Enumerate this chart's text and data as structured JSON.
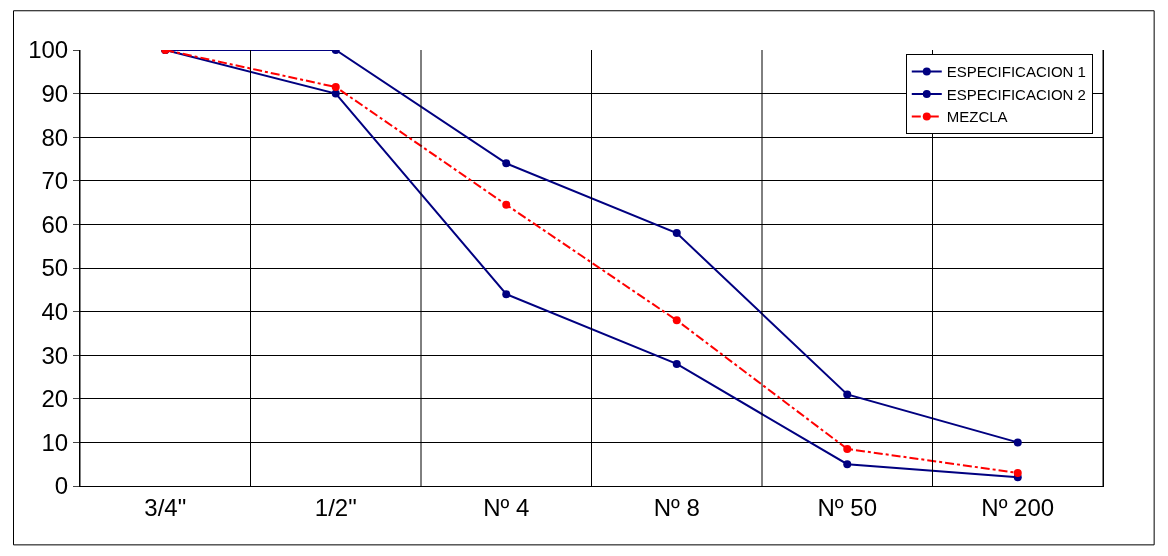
{
  "chart_data": {
    "type": "line",
    "categories": [
      "3/4\"",
      "1/2\"",
      "Nº 4",
      "Nº 8",
      "Nº 50",
      "Nº 200"
    ],
    "series": [
      {
        "name": "ESPECIFICACION 1",
        "color": "#000080",
        "values": [
          100,
          100,
          74,
          58,
          21,
          10
        ]
      },
      {
        "name": "ESPECIFICACION 2",
        "color": "#000080",
        "values": [
          100,
          90,
          44,
          28,
          5,
          2
        ]
      },
      {
        "name": "MEZCLA",
        "color": "#ff0000",
        "values": [
          100,
          91.5,
          64.5,
          38,
          8.5,
          3
        ],
        "line_style": "dashed"
      }
    ],
    "ylim": [
      0,
      100
    ],
    "yticks": [
      0,
      10,
      20,
      30,
      40,
      50,
      60,
      70,
      80,
      90,
      100
    ],
    "grid": true,
    "legend": "top right",
    "marker": "circle",
    "line_style": "solid"
  }
}
